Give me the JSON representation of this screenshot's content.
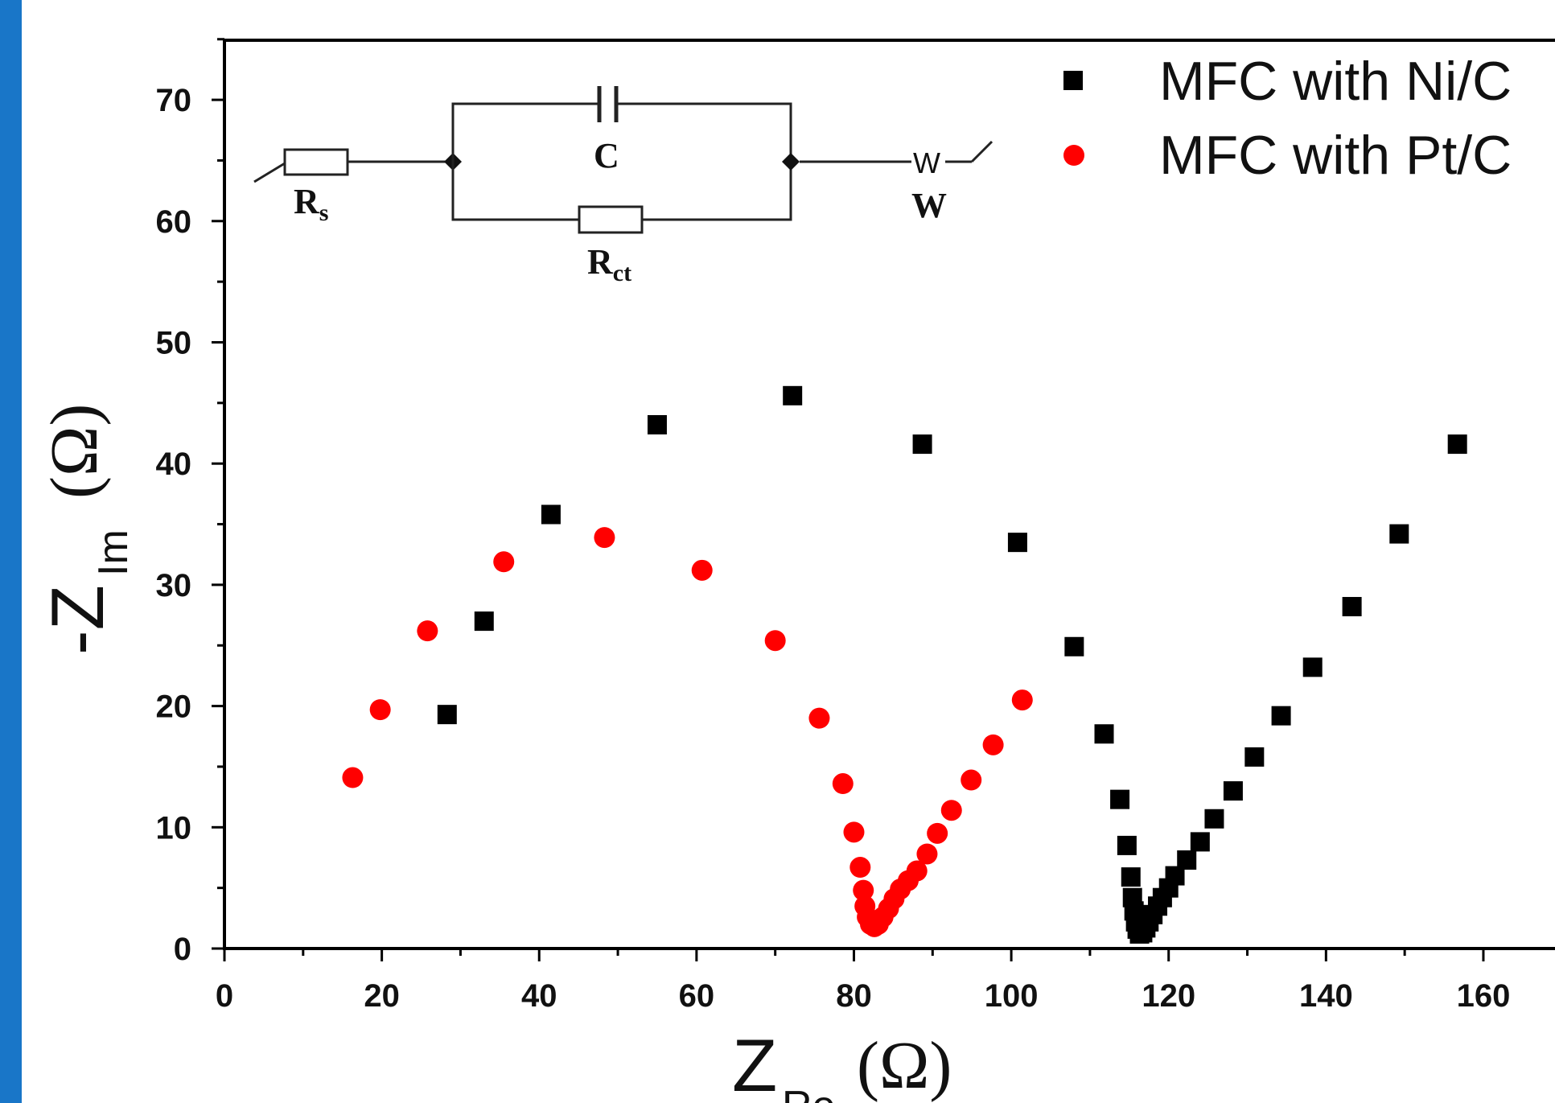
{
  "chart_data": {
    "type": "scatter",
    "title": "",
    "xlabel": {
      "main": "Z",
      "sub": "Re",
      "unit": "(Ω)"
    },
    "ylabel": {
      "prefix": "-Z",
      "sub": "Im",
      "unit": "(Ω)"
    },
    "xlim": [
      0,
      170
    ],
    "ylim": [
      0,
      75
    ],
    "xticks": [
      0,
      20,
      40,
      60,
      80,
      100,
      120,
      140,
      160
    ],
    "yticks": [
      0,
      10,
      20,
      30,
      40,
      50,
      60,
      70
    ],
    "legend_position": "top-right",
    "grid": false,
    "series": [
      {
        "name": "MFC with Ni/C",
        "marker": "square",
        "color": "#000000",
        "points": [
          [
            28.3,
            19.3
          ],
          [
            33.0,
            27.0
          ],
          [
            41.5,
            35.8
          ],
          [
            55.0,
            43.2
          ],
          [
            72.2,
            45.6
          ],
          [
            88.7,
            41.6
          ],
          [
            100.8,
            33.5
          ],
          [
            108.0,
            24.9
          ],
          [
            111.8,
            17.7
          ],
          [
            113.8,
            12.3
          ],
          [
            114.7,
            8.5
          ],
          [
            115.2,
            5.9
          ],
          [
            115.4,
            4.2
          ],
          [
            115.6,
            3.1
          ],
          [
            115.8,
            2.2
          ],
          [
            116.0,
            1.6
          ],
          [
            116.3,
            1.2
          ],
          [
            116.7,
            1.3
          ],
          [
            117.1,
            1.7
          ],
          [
            117.5,
            2.2
          ],
          [
            118.0,
            2.8
          ],
          [
            118.6,
            3.5
          ],
          [
            119.2,
            4.2
          ],
          [
            120.0,
            5.0
          ],
          [
            120.8,
            6.0
          ],
          [
            122.3,
            7.3
          ],
          [
            124.0,
            8.8
          ],
          [
            125.8,
            10.7
          ],
          [
            128.2,
            13.0
          ],
          [
            130.9,
            15.8
          ],
          [
            134.3,
            19.2
          ],
          [
            138.3,
            23.2
          ],
          [
            143.3,
            28.2
          ],
          [
            149.3,
            34.2
          ],
          [
            156.7,
            41.6
          ]
        ]
      },
      {
        "name": "MFC with Pt/C",
        "marker": "circle",
        "color": "#ff0000",
        "points": [
          [
            16.3,
            14.1
          ],
          [
            19.8,
            19.7
          ],
          [
            25.8,
            26.2
          ],
          [
            35.5,
            31.9
          ],
          [
            48.3,
            33.9
          ],
          [
            60.7,
            31.2
          ],
          [
            70.0,
            25.4
          ],
          [
            75.6,
            19.0
          ],
          [
            78.6,
            13.6
          ],
          [
            80.0,
            9.6
          ],
          [
            80.8,
            6.7
          ],
          [
            81.2,
            4.8
          ],
          [
            81.4,
            3.5
          ],
          [
            81.7,
            2.6
          ],
          [
            82.1,
            2.0
          ],
          [
            82.6,
            1.8
          ],
          [
            83.1,
            2.0
          ],
          [
            83.7,
            2.6
          ],
          [
            84.4,
            3.3
          ],
          [
            85.1,
            4.1
          ],
          [
            85.9,
            4.9
          ],
          [
            86.9,
            5.6
          ],
          [
            88.0,
            6.4
          ],
          [
            89.3,
            7.8
          ],
          [
            90.6,
            9.5
          ],
          [
            92.4,
            11.4
          ],
          [
            94.9,
            13.9
          ],
          [
            97.7,
            16.8
          ],
          [
            101.4,
            20.5
          ]
        ]
      }
    ]
  },
  "inset_circuit": {
    "labels": {
      "rs_main": "R",
      "rs_sub": "s",
      "c": "C",
      "rct_main": "R",
      "rct_sub": "ct",
      "w": "W",
      "w_glyph": "W"
    }
  }
}
